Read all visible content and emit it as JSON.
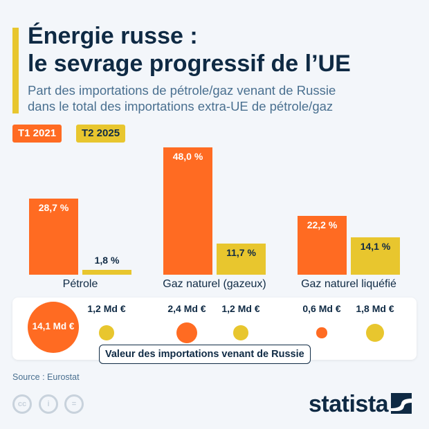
{
  "header": {
    "title_line1": "Énergie russe :",
    "title_line2": "le sevrage progressif de l’UE",
    "subtitle_line1": "Part des importations de pétrole/gaz venant de Russie",
    "subtitle_line2": "dans le total des importations extra-UE de pétrole/gaz"
  },
  "chart_data": [
    {
      "type": "bar",
      "categories": [
        "Pétrole",
        "Gaz naturel (gazeux)",
        "Gaz naturel liquéfié"
      ],
      "series": [
        {
          "name": "T1 2021",
          "values": [
            28.7,
            48.0,
            22.2
          ],
          "labels": [
            "28,7 %",
            "48,0 %",
            "22,2 %"
          ],
          "color": "#ff6b22"
        },
        {
          "name": "T2 2025",
          "values": [
            1.8,
            11.7,
            14.1
          ],
          "labels": [
            "1,8 %",
            "11,7 %",
            "14,1 %"
          ],
          "color": "#e8c62e"
        }
      ],
      "unit": "%",
      "ylim": [
        0,
        48
      ],
      "grid": false,
      "legend": "top-left"
    },
    {
      "type": "scatter",
      "title": "Valeur des importations venant de Russie",
      "unit": "Md €",
      "series": [
        {
          "name": "T1 2021",
          "values": [
            14.1,
            2.4,
            0.6
          ],
          "labels": [
            "14,1 Md €",
            "2,4 Md €",
            "0,6 Md €"
          ],
          "color": "#ff6b22"
        },
        {
          "name": "T2 2025",
          "values": [
            1.2,
            1.2,
            1.8
          ],
          "labels": [
            "1,2 Md €",
            "1,2 Md €",
            "1,8 Md €"
          ],
          "color": "#e8c62e"
        }
      ]
    }
  ],
  "footer": {
    "source": "Source : Eurostat",
    "logo": "statista",
    "license_icons": [
      "cc-icon",
      "by-icon",
      "nd-icon"
    ]
  }
}
